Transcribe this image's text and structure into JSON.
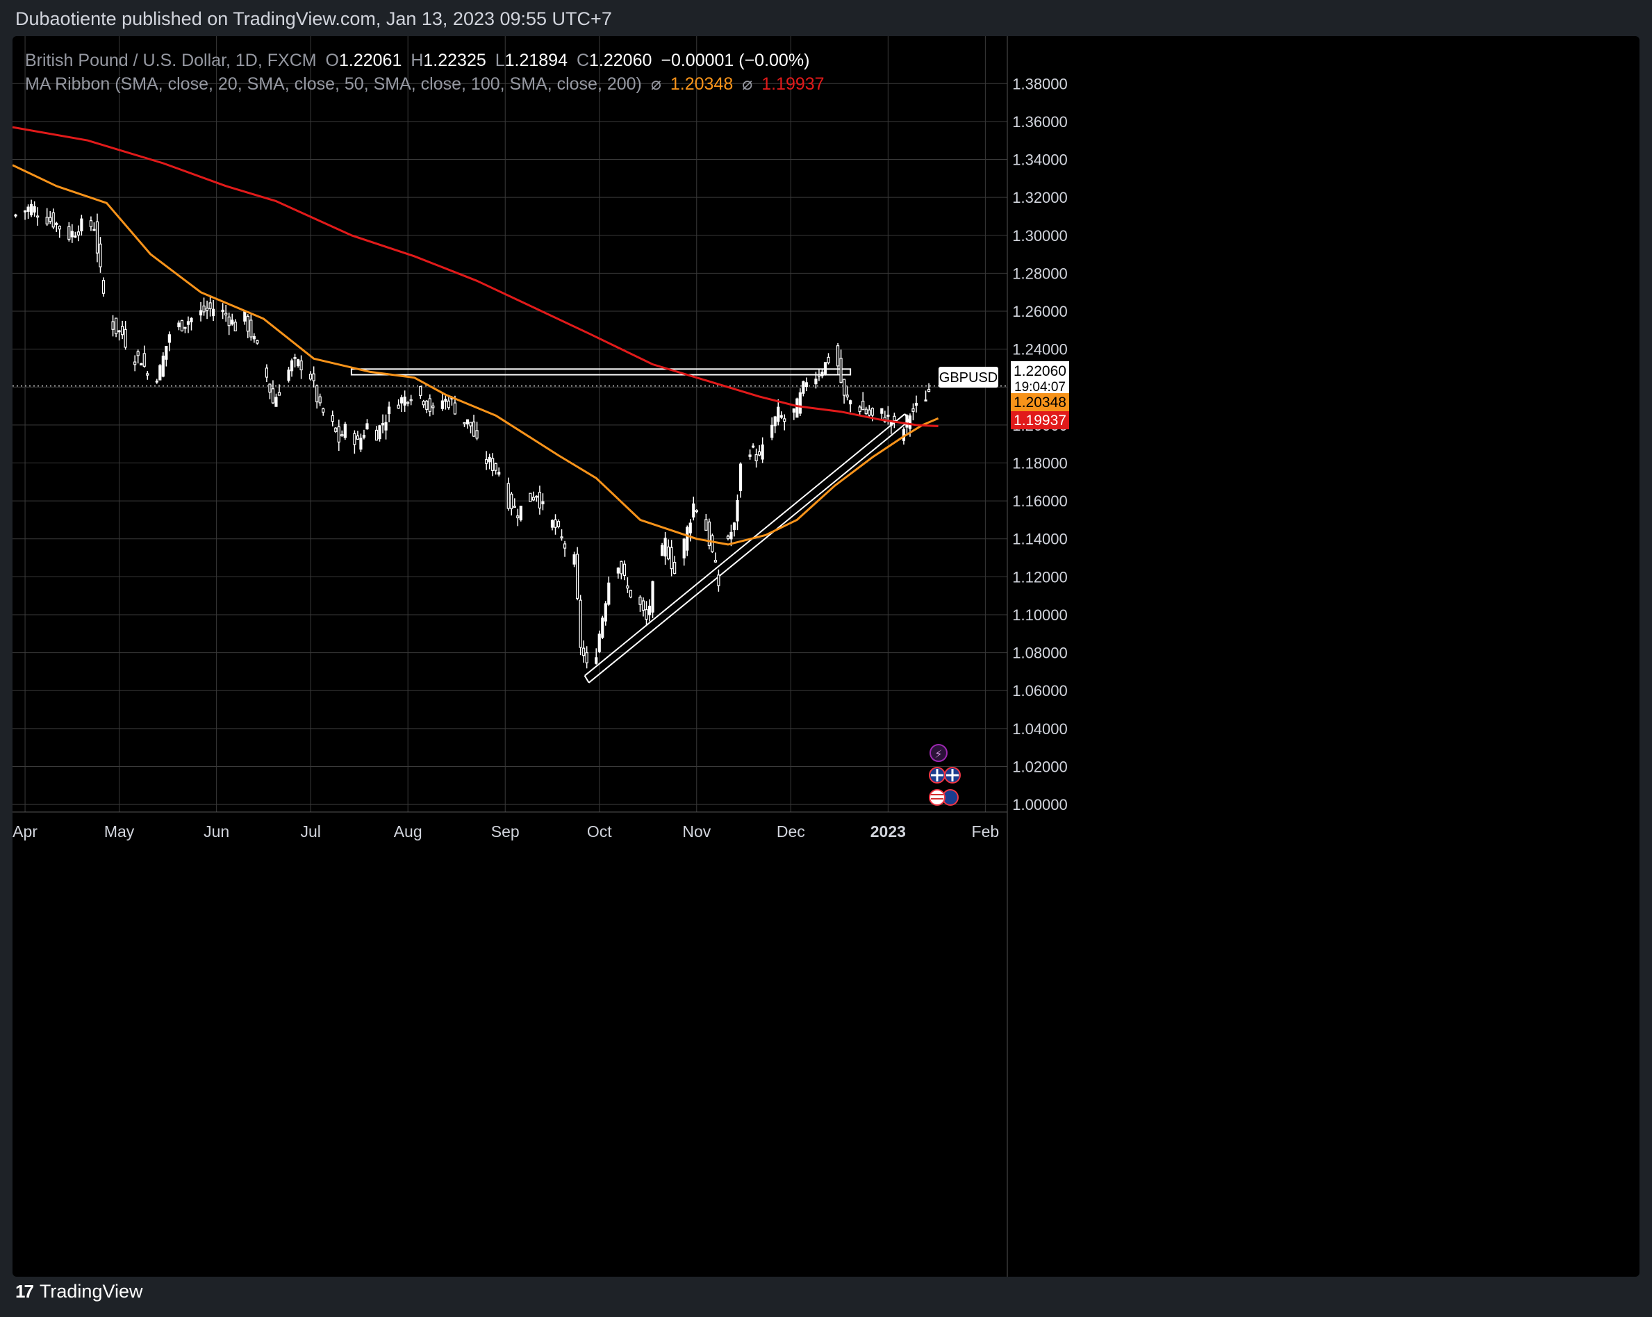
{
  "header": {
    "publish_text": "Dubaotiente published on TradingView.com, Jan 13, 2023 09:55 UTC+7"
  },
  "legend": {
    "symbol_line": "British Pound / U.S. Dollar, 1D, FXCM",
    "open_label": "O",
    "open_value": "1.22061",
    "high_label": "H",
    "high_value": "1.22325",
    "low_label": "L",
    "low_value": "1.21894",
    "close_label": "C",
    "close_value": "1.22060",
    "change": "−0.00001 (−0.00%)",
    "indicator": "MA Ribbon (SMA, close, 20, SMA, close, 50, SMA, close, 100, SMA, close, 200)",
    "ma_orange_value": "1.20348",
    "ma_red_value": "1.19937",
    "eye_glyph": "⌀"
  },
  "price_badges": {
    "symbol": "GBPUSD",
    "last_price": "1.22060",
    "countdown": "19:04:07",
    "ma_orange": "1.20348",
    "ma_red": "1.19937"
  },
  "colors": {
    "background": "#000000",
    "candle": "#ffffff",
    "ma_orange": "#f7931a",
    "ma_red": "#e11a1a",
    "grid": "#3a3a3a"
  },
  "footer": {
    "brand": "TradingView"
  },
  "chart_data": {
    "type": "candlestick",
    "symbol": "GBPUSD",
    "timeframe": "1D",
    "y_ticks": [
      "1.38000",
      "1.36000",
      "1.34000",
      "1.32000",
      "1.30000",
      "1.28000",
      "1.26000",
      "1.24000",
      "1.22000",
      "1.20000",
      "1.18000",
      "1.16000",
      "1.14000",
      "1.12000",
      "1.10000",
      "1.08000",
      "1.06000",
      "1.04000",
      "1.02000",
      "1.00000"
    ],
    "ylim": [
      0.996,
      1.405
    ],
    "x_ticks": [
      "Apr",
      "May",
      "Jun",
      "Jul",
      "Aug",
      "Sep",
      "Oct",
      "Nov",
      "Dec",
      "2023",
      "Feb"
    ],
    "x_tick_days": [
      0,
      30,
      61,
      91,
      122,
      153,
      183,
      214,
      244,
      275,
      306
    ],
    "xlim_days": [
      -4,
      313
    ],
    "close_path": [
      [
        -4,
        1.31
      ],
      [
        2,
        1.315
      ],
      [
        6,
        1.31
      ],
      [
        10,
        1.306
      ],
      [
        14,
        1.3
      ],
      [
        18,
        1.305
      ],
      [
        22,
        1.305
      ],
      [
        24,
        1.28
      ],
      [
        26,
        1.258
      ],
      [
        29,
        1.25
      ],
      [
        31,
        1.248
      ],
      [
        34,
        1.236
      ],
      [
        37,
        1.235
      ],
      [
        40,
        1.222
      ],
      [
        43,
        1.229
      ],
      [
        46,
        1.248
      ],
      [
        49,
        1.252
      ],
      [
        53,
        1.256
      ],
      [
        57,
        1.26
      ],
      [
        61,
        1.262
      ],
      [
        64,
        1.258
      ],
      [
        67,
        1.252
      ],
      [
        70,
        1.256
      ],
      [
        73,
        1.244
      ],
      [
        76,
        1.232
      ],
      [
        79,
        1.212
      ],
      [
        82,
        1.222
      ],
      [
        85,
        1.232
      ],
      [
        88,
        1.232
      ],
      [
        91,
        1.226
      ],
      [
        94,
        1.208
      ],
      [
        97,
        1.203
      ],
      [
        100,
        1.192
      ],
      [
        103,
        1.2
      ],
      [
        106,
        1.19
      ],
      [
        109,
        1.2
      ],
      [
        112,
        1.196
      ],
      [
        115,
        1.204
      ],
      [
        118,
        1.212
      ],
      [
        121,
        1.214
      ],
      [
        124,
        1.218
      ],
      [
        127,
        1.214
      ],
      [
        130,
        1.206
      ],
      [
        133,
        1.213
      ],
      [
        136,
        1.212
      ],
      [
        139,
        1.203
      ],
      [
        142,
        1.2
      ],
      [
        145,
        1.184
      ],
      [
        148,
        1.18
      ],
      [
        151,
        1.176
      ],
      [
        154,
        1.16
      ],
      [
        157,
        1.154
      ],
      [
        160,
        1.16
      ],
      [
        163,
        1.164
      ],
      [
        166,
        1.152
      ],
      [
        169,
        1.146
      ],
      [
        172,
        1.136
      ],
      [
        175,
        1.128
      ],
      [
        177,
        1.084
      ],
      [
        179,
        1.072
      ],
      [
        181,
        1.072
      ],
      [
        183,
        1.09
      ],
      [
        186,
        1.118
      ],
      [
        189,
        1.128
      ],
      [
        192,
        1.113
      ],
      [
        195,
        1.108
      ],
      [
        198,
        1.097
      ],
      [
        201,
        1.122
      ],
      [
        204,
        1.138
      ],
      [
        207,
        1.122
      ],
      [
        210,
        1.138
      ],
      [
        213,
        1.158
      ],
      [
        216,
        1.152
      ],
      [
        219,
        1.132
      ],
      [
        221,
        1.116
      ],
      [
        223,
        1.138
      ],
      [
        226,
        1.146
      ],
      [
        228,
        1.178
      ],
      [
        231,
        1.188
      ],
      [
        234,
        1.182
      ],
      [
        237,
        1.196
      ],
      [
        240,
        1.206
      ],
      [
        243,
        1.2
      ],
      [
        246,
        1.21
      ],
      [
        249,
        1.224
      ],
      [
        252,
        1.226
      ],
      [
        255,
        1.232
      ],
      [
        258,
        1.24
      ],
      [
        261,
        1.214
      ],
      [
        264,
        1.212
      ],
      [
        267,
        1.208
      ],
      [
        270,
        1.204
      ],
      [
        273,
        1.206
      ],
      [
        276,
        1.202
      ],
      [
        279,
        1.194
      ],
      [
        282,
        1.206
      ],
      [
        285,
        1.21
      ],
      [
        288,
        1.218
      ]
    ],
    "series": [
      {
        "name": "SMA 100",
        "color": "#f7931a",
        "points": [
          [
            -4,
            1.337
          ],
          [
            10,
            1.326
          ],
          [
            26,
            1.317
          ],
          [
            40,
            1.29
          ],
          [
            56,
            1.27
          ],
          [
            76,
            1.256
          ],
          [
            92,
            1.235
          ],
          [
            110,
            1.228
          ],
          [
            124,
            1.225
          ],
          [
            134,
            1.216
          ],
          [
            150,
            1.205
          ],
          [
            170,
            1.184
          ],
          [
            182,
            1.172
          ],
          [
            196,
            1.15
          ],
          [
            214,
            1.14
          ],
          [
            224,
            1.137
          ],
          [
            236,
            1.142
          ],
          [
            246,
            1.15
          ],
          [
            258,
            1.168
          ],
          [
            270,
            1.183
          ],
          [
            280,
            1.194
          ],
          [
            286,
            1.2
          ],
          [
            291,
            1.2035
          ]
        ]
      },
      {
        "name": "SMA 200",
        "color": "#e11a1a",
        "points": [
          [
            -4,
            1.357
          ],
          [
            20,
            1.35
          ],
          [
            44,
            1.338
          ],
          [
            64,
            1.326
          ],
          [
            80,
            1.318
          ],
          [
            104,
            1.3
          ],
          [
            124,
            1.289
          ],
          [
            144,
            1.276
          ],
          [
            162,
            1.262
          ],
          [
            180,
            1.248
          ],
          [
            200,
            1.232
          ],
          [
            220,
            1.222
          ],
          [
            234,
            1.215
          ],
          [
            246,
            1.21
          ],
          [
            260,
            1.207
          ],
          [
            272,
            1.203
          ],
          [
            284,
            1.2
          ],
          [
            291,
            1.1994
          ]
        ]
      }
    ],
    "annotations": [
      {
        "type": "rectangle",
        "x_days": [
          104,
          263
        ],
        "y": [
          1.2265,
          1.2295
        ]
      },
      {
        "type": "trend_channel",
        "from": [
          179,
          1.066
        ],
        "to": [
          281,
          1.204
        ]
      }
    ],
    "last_price_line": 1.2206
  }
}
